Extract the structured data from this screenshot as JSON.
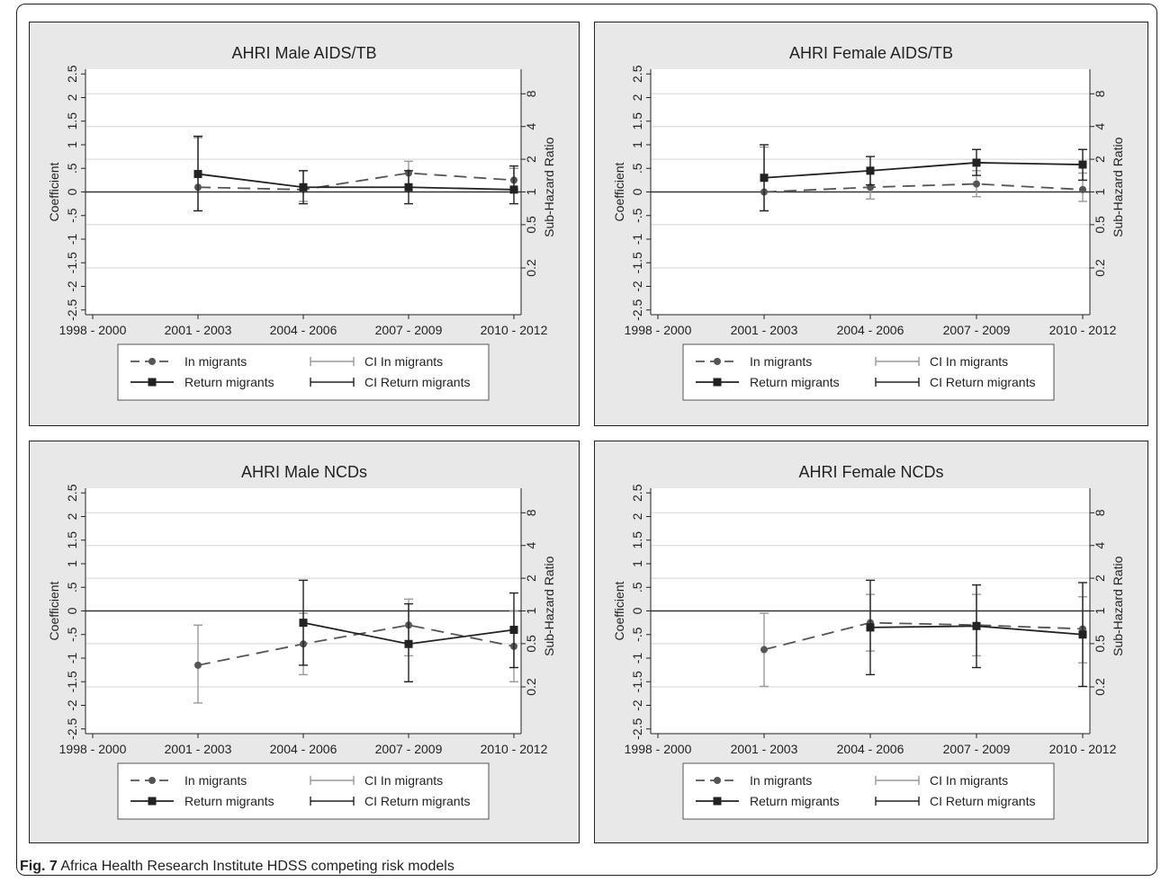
{
  "figure": {
    "caption_label": "Fig. 7",
    "caption_text": "Africa Health Research Institute HDSS competing risk models"
  },
  "colors": {
    "panel_bg": "#e8e8e8",
    "plot_bg": "#ffffff",
    "in_migrants": "#555555",
    "return_migrants": "#222222",
    "ci_in": "#999999",
    "ci_return": "#222222",
    "gridline": "#dcdcdc"
  },
  "chart_data": [
    {
      "type": "line",
      "title": "AHRI Male AIDS/TB",
      "ylabel": "Coefficient",
      "y2label": "Sub-Hazard Ratio",
      "categories": [
        "1998 - 2000",
        "2001 - 2003",
        "2004 - 2006",
        "2007 - 2009",
        "2010 - 2012"
      ],
      "y_ticks": [
        "-2.5",
        "-2",
        "-1.5",
        "-1",
        "-.5",
        "0",
        ".5",
        "1",
        "1.5",
        "2",
        "2.5"
      ],
      "hr_ticks": [
        "0.2",
        "0.5",
        "1",
        "2",
        "4",
        "8"
      ],
      "ylim": [
        -2.6,
        2.6
      ],
      "grid": true,
      "series": [
        {
          "name": "In migrants",
          "values": [
            null,
            0.1,
            0.05,
            0.4,
            0.25
          ],
          "ci": [
            null,
            [
              -0.4,
              1.15
            ],
            [
              -0.2,
              0.45
            ],
            [
              0.1,
              0.65
            ],
            [
              0.05,
              0.5
            ]
          ]
        },
        {
          "name": "Return migrants",
          "values": [
            null,
            0.38,
            0.1,
            0.1,
            0.05
          ],
          "ci": [
            null,
            [
              -0.4,
              1.18
            ],
            [
              -0.25,
              0.45
            ],
            [
              -0.25,
              0.45
            ],
            [
              -0.25,
              0.55
            ]
          ]
        }
      ],
      "legend": {
        "in": "In migrants",
        "ci_in": "CI In migrants",
        "ret": "Return migrants",
        "ci_ret": "CI Return migrants"
      }
    },
    {
      "type": "line",
      "title": "AHRI Female AIDS/TB",
      "ylabel": "Coefficient",
      "y2label": "Sub-Hazard Ratio",
      "categories": [
        "1998 - 2000",
        "2001 - 2003",
        "2004 - 2006",
        "2007 - 2009",
        "2010 - 2012"
      ],
      "y_ticks": [
        "-2.5",
        "-2",
        "-1.5",
        "-1",
        "-.5",
        "0",
        ".5",
        "1",
        "1.5",
        "2",
        "2.5"
      ],
      "hr_ticks": [
        "0.2",
        "0.5",
        "1",
        "2",
        "4",
        "8"
      ],
      "ylim": [
        -2.6,
        2.6
      ],
      "grid": true,
      "series": [
        {
          "name": "In migrants",
          "values": [
            null,
            0.0,
            0.1,
            0.17,
            0.05
          ],
          "ci": [
            null,
            [
              -0.4,
              0.95
            ],
            [
              -0.15,
              0.45
            ],
            [
              -0.1,
              0.45
            ],
            [
              -0.2,
              0.4
            ]
          ]
        },
        {
          "name": "Return migrants",
          "values": [
            null,
            0.3,
            0.45,
            0.62,
            0.58
          ],
          "ci": [
            null,
            [
              -0.4,
              1.0
            ],
            [
              0.15,
              0.75
            ],
            [
              0.35,
              0.9
            ],
            [
              0.25,
              0.9
            ]
          ]
        }
      ],
      "legend": {
        "in": "In migrants",
        "ci_in": "CI In migrants",
        "ret": "Return migrants",
        "ci_ret": "CI Return migrants"
      }
    },
    {
      "type": "line",
      "title": "AHRI Male NCDs",
      "ylabel": "Coefficient",
      "y2label": "Sub-Hazard Ratio",
      "categories": [
        "1998 - 2000",
        "2001 - 2003",
        "2004 - 2006",
        "2007 - 2009",
        "2010 - 2012"
      ],
      "y_ticks": [
        "-2.5",
        "-2",
        "-1.5",
        "-1",
        "-.5",
        "0",
        ".5",
        "1",
        "1.5",
        "2",
        "2.5"
      ],
      "hr_ticks": [
        "0.2",
        "0.5",
        "1",
        "2",
        "4",
        "8"
      ],
      "ylim": [
        -2.6,
        2.6
      ],
      "grid": true,
      "series": [
        {
          "name": "In migrants",
          "values": [
            null,
            -1.15,
            -0.7,
            -0.3,
            -0.75
          ],
          "ci": [
            null,
            [
              -1.95,
              -0.3
            ],
            [
              -1.35,
              -0.05
            ],
            [
              -0.95,
              0.25
            ],
            [
              -1.5,
              0.0
            ]
          ]
        },
        {
          "name": "Return migrants",
          "values": [
            null,
            null,
            -0.25,
            -0.7,
            -0.4
          ],
          "ci": [
            null,
            null,
            [
              -1.15,
              0.65
            ],
            [
              -1.5,
              0.15
            ],
            [
              -1.2,
              0.38
            ]
          ]
        }
      ],
      "legend": {
        "in": "In migrants",
        "ci_in": "CI In migrants",
        "ret": "Return migrants",
        "ci_ret": "CI Return migrants"
      }
    },
    {
      "type": "line",
      "title": "AHRI Female NCDs",
      "ylabel": "Coefficient",
      "y2label": "Sub-Hazard Ratio",
      "categories": [
        "1998 - 2000",
        "2001 - 2003",
        "2004 - 2006",
        "2007 - 2009",
        "2010 - 2012"
      ],
      "y_ticks": [
        "-2.5",
        "-2",
        "-1.5",
        "-1",
        "-.5",
        "0",
        ".5",
        "1",
        "1.5",
        "2",
        "2.5"
      ],
      "hr_ticks": [
        "0.2",
        "0.5",
        "1",
        "2",
        "4",
        "8"
      ],
      "ylim": [
        -2.6,
        2.6
      ],
      "grid": true,
      "series": [
        {
          "name": "In migrants",
          "values": [
            null,
            -0.82,
            -0.25,
            -0.3,
            -0.38
          ],
          "ci": [
            null,
            [
              -1.6,
              -0.05
            ],
            [
              -0.85,
              0.35
            ],
            [
              -0.95,
              0.35
            ],
            [
              -1.1,
              0.3
            ]
          ]
        },
        {
          "name": "Return migrants",
          "values": [
            null,
            null,
            -0.35,
            -0.32,
            -0.5
          ],
          "ci": [
            null,
            null,
            [
              -1.35,
              0.65
            ],
            [
              -1.2,
              0.55
            ],
            [
              -1.6,
              0.6
            ]
          ]
        }
      ],
      "legend": {
        "in": "In migrants",
        "ci_in": "CI In migrants",
        "ret": "Return migrants",
        "ci_ret": "CI Return migrants"
      }
    }
  ]
}
